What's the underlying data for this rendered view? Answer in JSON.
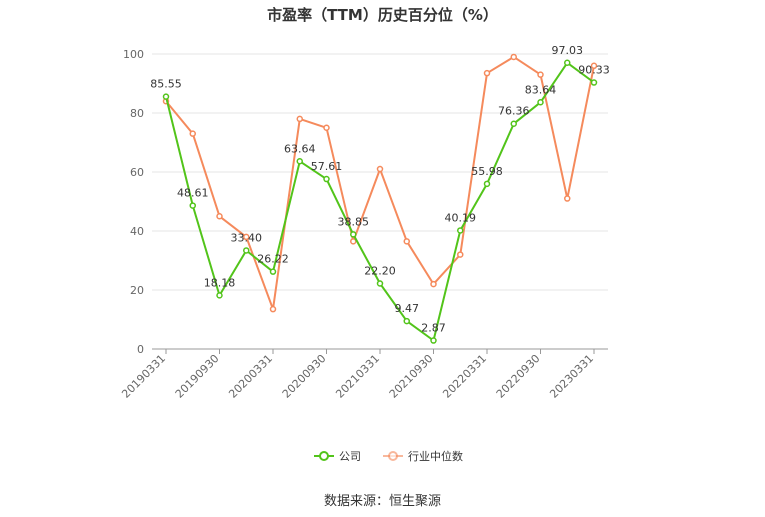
{
  "chart_data": {
    "type": "line",
    "title": "市盈率（TTM）历史百分位（%）",
    "xlabel": "",
    "ylabel": "",
    "ylim": [
      0,
      100
    ],
    "yticks": [
      0,
      20,
      40,
      60,
      80,
      100
    ],
    "grid": true,
    "legend_position": "bottom",
    "x": [
      "20190331",
      "20190630",
      "20190930",
      "20191231",
      "20200331",
      "20200630",
      "20200930",
      "20201231",
      "20210331",
      "20210630",
      "20210930",
      "20211231",
      "20220331",
      "20220630",
      "20220930",
      "20221231",
      "20230331"
    ],
    "x_tick_labels": [
      "20190331",
      "20190930",
      "20200331",
      "20200930",
      "20210331",
      "20210930",
      "20220331",
      "20220930",
      "20230331"
    ],
    "series": [
      {
        "name": "公司",
        "color": "#52c41a",
        "values": [
          85.55,
          48.61,
          18.18,
          33.4,
          26.22,
          63.64,
          57.61,
          38.85,
          22.2,
          9.47,
          2.87,
          40.19,
          55.98,
          76.36,
          83.64,
          97.03,
          90.33
        ],
        "labels": [
          "85.55",
          "48.61",
          "18.18",
          "33.40",
          "26.22",
          "63.64",
          "57.61",
          "38.85",
          "22.20",
          "9.47",
          "2.87",
          "40.19",
          "55.98",
          "76.36",
          "83.64",
          "97.03",
          "90.33"
        ]
      },
      {
        "name": "行业中位数",
        "color": "#f58a5c",
        "values": [
          84,
          73,
          45,
          38,
          13.5,
          78,
          75,
          36.5,
          61,
          36.5,
          22,
          32,
          93.5,
          99,
          93,
          51,
          96
        ],
        "labels": []
      }
    ],
    "source": "数据来源：恒生聚源"
  }
}
